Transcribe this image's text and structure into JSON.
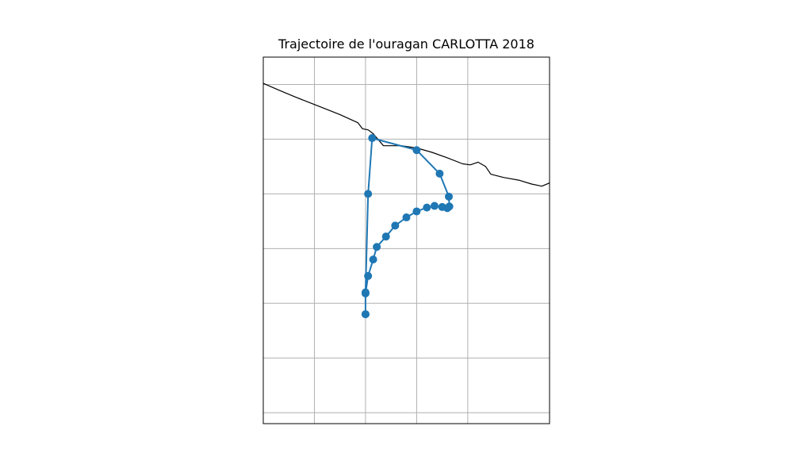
{
  "chart_data": {
    "type": "map-trajectory",
    "title": "Trajectoire de l'ouragan CARLOTTA 2018",
    "grid": true,
    "tick_labels_visible": false,
    "marker": "circle",
    "colors": {
      "track": "#1f77b4",
      "coastline": "#000000",
      "grid": "#b0b0b0",
      "frame": "#000000",
      "background": "#ffffff"
    },
    "grid_lon": [
      -101.0,
      -100.0,
      -99.0,
      -98.0
    ],
    "grid_lat": [
      17.0,
      16.0,
      15.0,
      14.0,
      13.0,
      12.0,
      11.0
    ],
    "extent": {
      "lon": [
        -102.0,
        -96.4
      ],
      "lat": [
        10.8,
        17.5
      ]
    },
    "coastline": [
      [
        -102.0,
        17.02
      ],
      [
        -101.7,
        16.9
      ],
      [
        -101.4,
        16.78
      ],
      [
        -101.1,
        16.67
      ],
      [
        -100.8,
        16.56
      ],
      [
        -100.5,
        16.45
      ],
      [
        -100.15,
        16.3
      ],
      [
        -100.06,
        16.19
      ],
      [
        -99.95,
        16.17
      ],
      [
        -99.85,
        16.1
      ],
      [
        -99.65,
        15.88
      ],
      [
        -99.3,
        15.88
      ],
      [
        -99.0,
        15.84
      ],
      [
        -98.7,
        15.76
      ],
      [
        -98.4,
        15.66
      ],
      [
        -98.1,
        15.55
      ],
      [
        -97.95,
        15.53
      ],
      [
        -97.8,
        15.58
      ],
      [
        -97.65,
        15.5
      ],
      [
        -97.55,
        15.36
      ],
      [
        -97.3,
        15.3
      ],
      [
        -97.0,
        15.25
      ],
      [
        -96.75,
        15.18
      ],
      [
        -96.55,
        15.14
      ],
      [
        -96.4,
        15.2
      ]
    ],
    "track": [
      {
        "lon": -100.0,
        "lat": 12.8
      },
      {
        "lon": -100.0,
        "lat": 13.18
      },
      {
        "lon": -99.95,
        "lat": 13.5
      },
      {
        "lon": -99.85,
        "lat": 13.8
      },
      {
        "lon": -99.78,
        "lat": 14.03
      },
      {
        "lon": -99.6,
        "lat": 14.22
      },
      {
        "lon": -99.42,
        "lat": 14.42
      },
      {
        "lon": -99.2,
        "lat": 14.57
      },
      {
        "lon": -99.0,
        "lat": 14.68
      },
      {
        "lon": -98.8,
        "lat": 14.75
      },
      {
        "lon": -98.65,
        "lat": 14.78
      },
      {
        "lon": -98.5,
        "lat": 14.76
      },
      {
        "lon": -98.4,
        "lat": 14.74
      },
      {
        "lon": -98.36,
        "lat": 14.77
      },
      {
        "lon": -98.37,
        "lat": 14.95
      },
      {
        "lon": -98.55,
        "lat": 15.37
      },
      {
        "lon": -99.0,
        "lat": 15.8
      },
      {
        "lon": -99.87,
        "lat": 16.02
      },
      {
        "lon": -99.95,
        "lat": 15.0
      },
      {
        "lon": -100.0,
        "lat": 13.2
      },
      {
        "lon": -100.0,
        "lat": 12.8
      }
    ]
  }
}
